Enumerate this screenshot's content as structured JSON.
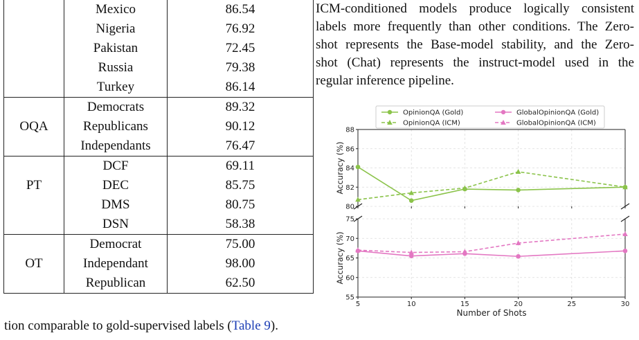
{
  "table": {
    "rows": [
      {
        "group": "",
        "condition": "Mexico",
        "value": "86.54"
      },
      {
        "group": "",
        "condition": "Nigeria",
        "value": "76.92"
      },
      {
        "group": "",
        "condition": "Pakistan",
        "value": "72.45"
      },
      {
        "group": "",
        "condition": "Russia",
        "value": "79.38"
      },
      {
        "group": "",
        "condition": "Turkey",
        "value": "86.14"
      },
      {
        "group": "",
        "condition": "Democrats",
        "value": "89.32"
      },
      {
        "group": "OQA",
        "condition": "Republicans",
        "value": "90.12"
      },
      {
        "group": "",
        "condition": "Independants",
        "value": "76.47"
      },
      {
        "group": "",
        "condition": "DCF",
        "value": "69.11"
      },
      {
        "group": "PT",
        "condition": "DEC",
        "value": "85.75"
      },
      {
        "group": "",
        "condition": "DMS",
        "value": "80.75"
      },
      {
        "group": "",
        "condition": "DSN",
        "value": "58.38"
      },
      {
        "group": "",
        "condition": "Democrat",
        "value": "75.00"
      },
      {
        "group": "OT",
        "condition": "Independant",
        "value": "98.00"
      },
      {
        "group": "",
        "condition": "Republican",
        "value": "62.50"
      }
    ]
  },
  "paragraph": {
    "lines": [
      "ICM-conditioned models produce logically consistent",
      "labels more frequently than other conditions. The Zero-",
      "shot represents the Base-model stability, and the Zero-",
      "shot (Chat) represents the instruct-model used in the",
      "regular inference pipeline."
    ]
  },
  "below_text": {
    "before": "tion comparable to gold-supervised labels (",
    "ref": "Table 9",
    "after": ")."
  },
  "chart_data": {
    "type": "line",
    "xlabel": "Number of Shots",
    "x": [
      5,
      10,
      15,
      20,
      30
    ],
    "xticks": [
      5,
      10,
      15,
      20,
      25,
      30
    ],
    "top_panel": {
      "ylabel": "Accuracy (%)",
      "ylim": [
        80,
        88
      ],
      "yticks": [
        80,
        82,
        84,
        86,
        88
      ],
      "series": [
        {
          "name": "OpinionQA (Gold)",
          "color": "#8bc34a",
          "style": "solid",
          "marker": "circle",
          "values": [
            84.1,
            80.6,
            81.8,
            81.7,
            82.0
          ]
        },
        {
          "name": "OpinionQA (ICM)",
          "color": "#8bc34a",
          "style": "dashed",
          "marker": "triangle",
          "values": [
            80.7,
            81.4,
            81.9,
            83.6,
            82.0
          ]
        }
      ]
    },
    "bottom_panel": {
      "ylabel": "Accuracy (%)",
      "ylim": [
        55,
        75
      ],
      "yticks": [
        55,
        60,
        65,
        70,
        75
      ],
      "series": [
        {
          "name": "GlobalOpinionQA (Gold)",
          "color": "#e377c2",
          "style": "solid",
          "marker": "circle",
          "values": [
            66.8,
            65.5,
            66.1,
            65.4,
            66.8
          ]
        },
        {
          "name": "GlobalOpinionQA (ICM)",
          "color": "#e377c2",
          "style": "dashed",
          "marker": "triangle",
          "values": [
            67.0,
            66.4,
            66.6,
            68.8,
            71.1
          ]
        }
      ]
    },
    "legend": {
      "placement": "top",
      "entries": [
        "OpinionQA (Gold)",
        "GlobalOpinionQA (Gold)",
        "OpinionQA (ICM)",
        "GlobalOpinionQA (ICM)"
      ]
    },
    "grid": true
  }
}
